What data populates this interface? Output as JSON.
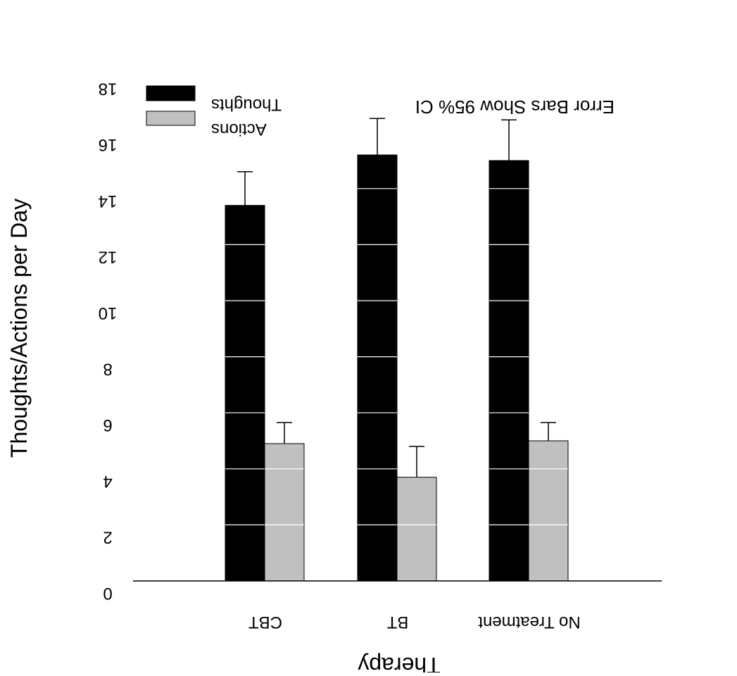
{
  "chart_data": {
    "type": "bar",
    "title": "",
    "xlabel": "Therapy",
    "ylabel": "Thoughts/Actions per Day",
    "annotation": "Error Bars Show 95% CI",
    "categories": [
      "CBT",
      "BT",
      "No Treatment"
    ],
    "series": [
      {
        "name": "Thoughts",
        "color": "#000000",
        "values": [
          13.4,
          15.2,
          15.0
        ],
        "ci_upper": [
          14.6,
          16.5,
          16.45
        ]
      },
      {
        "name": "Actions",
        "color": "#c0c0c0",
        "values": [
          4.9,
          3.7,
          5.0
        ],
        "ci_upper": [
          5.65,
          4.8,
          5.65
        ]
      }
    ],
    "yticks": [
      "0",
      "2",
      "4",
      "6",
      "8",
      "10",
      "12",
      "14",
      "16",
      "18"
    ],
    "ylim": [
      0,
      18
    ],
    "grid": false,
    "legend_position": "top-left",
    "orientation": "rendered upside down (rotated 180 degrees)"
  }
}
